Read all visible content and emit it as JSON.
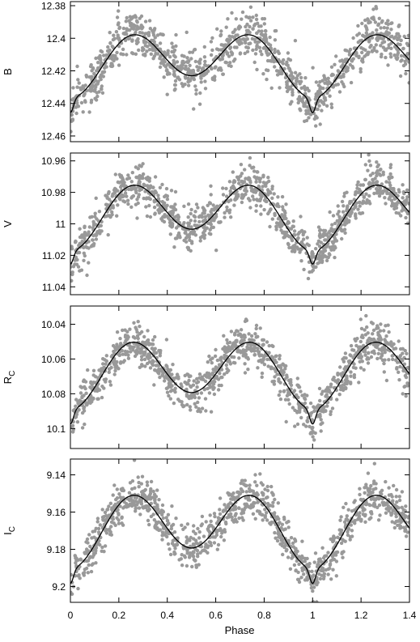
{
  "figure": {
    "xlabel": "Phase",
    "x_ticks": [
      "0",
      "0.2",
      "0.4",
      "0.6",
      "0.8",
      "1",
      "1.2",
      "1.4"
    ]
  },
  "chart_data": [
    {
      "type": "scatter",
      "ylabel": "B",
      "ylabel_sub": "",
      "xlim": [
        0,
        1.4
      ],
      "ylim": [
        12.4635,
        12.3775
      ],
      "y_inverted": true,
      "yticks": [
        12.38,
        12.4,
        12.42,
        12.44,
        12.46
      ],
      "ytick_labels": [
        "12.38",
        "12.4",
        "12.42",
        "12.44",
        "12.46"
      ],
      "fit_curve": {
        "mean": 12.414,
        "amp1": 0.0158,
        "amp2": 0.0068,
        "dip_depth": 0.009
      },
      "scatter_sigma": 0.0068,
      "series": [
        {
          "name": "",
          "kind": "observations",
          "color": "#999999"
        },
        {
          "name": "",
          "kind": "model fit",
          "color": "#000000"
        }
      ]
    },
    {
      "type": "scatter",
      "ylabel": "V",
      "ylabel_sub": "",
      "xlim": [
        0,
        1.4
      ],
      "ylim": [
        11.045,
        10.955
      ],
      "y_inverted": true,
      "yticks": [
        10.96,
        10.98,
        11,
        11.02,
        11.04
      ],
      "ytick_labels": [
        "10.96",
        "10.98",
        "11",
        "11.02",
        "11.04"
      ],
      "fit_curve": {
        "mean": 10.993,
        "amp1": 0.0172,
        "amp2": 0.0068,
        "dip_depth": 0.0085
      },
      "scatter_sigma": 0.0065,
      "series": [
        {
          "name": "",
          "kind": "observations",
          "color": "#999999"
        },
        {
          "name": "",
          "kind": "model fit",
          "color": "#000000"
        }
      ]
    },
    {
      "type": "scatter",
      "ylabel": "R",
      "ylabel_sub": "C",
      "xlim": [
        0,
        1.4
      ],
      "ylim": [
        10.1115,
        10.0295
      ],
      "y_inverted": true,
      "yticks": [
        10.04,
        10.06,
        10.08,
        10.1
      ],
      "ytick_labels": [
        "10.04",
        "10.06",
        "10.08",
        "10.1"
      ],
      "fit_curve": {
        "mean": 10.0673,
        "amp1": 0.0168,
        "amp2": 0.0048,
        "dip_depth": 0.0085
      },
      "scatter_sigma": 0.006,
      "series": [
        {
          "name": "",
          "kind": "observations",
          "color": "#999999"
        },
        {
          "name": "",
          "kind": "model fit",
          "color": "#000000"
        }
      ]
    },
    {
      "type": "scatter",
      "ylabel": "I",
      "ylabel_sub": "C",
      "xlim": [
        0,
        1.4
      ],
      "ylim": [
        9.2085,
        9.1315
      ],
      "y_inverted": true,
      "yticks": [
        9.14,
        9.16,
        9.18,
        9.2
      ],
      "ytick_labels": [
        "9.14",
        "9.16",
        "9.18",
        "9.2"
      ],
      "fit_curve": {
        "mean": 9.168,
        "amp1": 0.0168,
        "amp2": 0.0055,
        "dip_depth": 0.008
      },
      "scatter_sigma": 0.0055,
      "series": [
        {
          "name": "",
          "kind": "observations",
          "color": "#999999"
        },
        {
          "name": "",
          "kind": "model fit",
          "color": "#000000"
        }
      ]
    }
  ]
}
